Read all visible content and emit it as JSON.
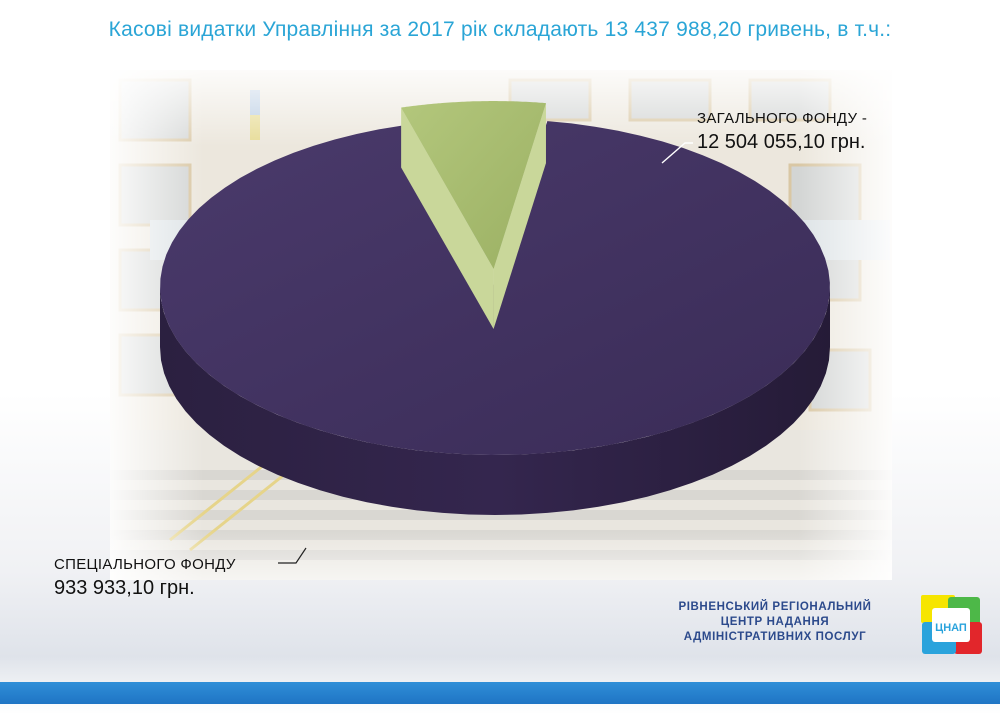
{
  "title": "Касові видатки Управління за 2017 рік складають 13 437 988,20 гривень, в т.ч.:",
  "chart_data": {
    "type": "pie",
    "title": "Касові видатки Управління за 2017 рік складають 13 437 988,20 гривень, в т.ч.:",
    "total": 13437988.2,
    "slices": [
      {
        "label": "ЗАГАЛЬНОГО ФОНДУ -",
        "value": 12504055.1,
        "value_text": "12 504 055,10 грн.",
        "color": "#3e2f5b"
      },
      {
        "label": "СПЕЦІАЛЬНОГО ФОНДУ",
        "value": 933933.1,
        "value_text": "933 933,10 грн.",
        "color": "#a3b86b"
      }
    ]
  },
  "org": {
    "line1": "РІВНЕНСЬКИЙ РЕГІОНАЛЬНИЙ",
    "line2": "ЦЕНТР НАДАННЯ",
    "line3": "АДМІНІСТРАТИВНИХ ПОСЛУГ"
  },
  "logo": {
    "text": "ЦНАП",
    "colors": [
      "#f6e500",
      "#e2262b",
      "#2aa3dc",
      "#4db848"
    ]
  },
  "colors": {
    "title": "#2aa5d6",
    "bottom_bar": "#1f74c4"
  }
}
